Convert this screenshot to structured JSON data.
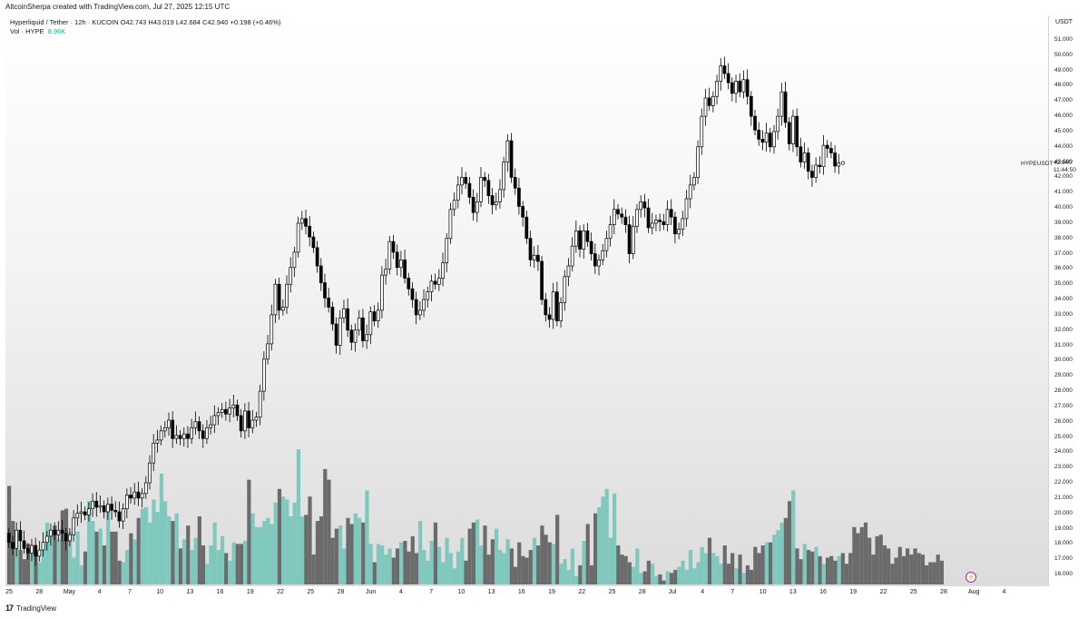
{
  "header": {
    "attribution": "AltcoinSherpa created with TradingView.com, Jul 27, 2025 12:15 UTC"
  },
  "legend": {
    "line1": "Hyperliquid / Tether · 12h · KUCOIN  O42.743  H43.019  L42.684  C42.940  +0.198 (+0.46%)",
    "vol_label": "Vol · HYPE",
    "vol_value": "8.96K"
  },
  "price_axis": {
    "unit": "USDT",
    "ticks": [
      "51.000",
      "50.000",
      "49.000",
      "48.000",
      "47.000",
      "46.000",
      "45.000",
      "44.000",
      "43.000",
      "42.000",
      "41.000",
      "40.000",
      "39.000",
      "38.000",
      "37.000",
      "36.000",
      "35.000",
      "34.000",
      "33.000",
      "32.000",
      "31.000",
      "30.000",
      "29.000",
      "28.000",
      "27.000",
      "26.000",
      "25.000",
      "24.000",
      "23.000",
      "22.000",
      "21.000",
      "20.000",
      "19.000",
      "18.000",
      "17.000",
      "16.000"
    ],
    "last_price": "42.940",
    "countdown": "11:44:50",
    "symbol": "HYPEUSDT"
  },
  "time_axis": {
    "ticks": [
      "25",
      "28",
      "May",
      "4",
      "7",
      "10",
      "13",
      "16",
      "19",
      "22",
      "25",
      "28",
      "Jun",
      "4",
      "7",
      "10",
      "13",
      "16",
      "19",
      "22",
      "25",
      "28",
      "Jul",
      "4",
      "7",
      "10",
      "13",
      "16",
      "19",
      "22",
      "25",
      "28",
      "Aug",
      "4"
    ]
  },
  "footer": {
    "brand": "TradingView",
    "logo_glyph": "17"
  },
  "colors": {
    "up": "#ffffff",
    "down": "#000000",
    "vol_up": "#7fc8bd",
    "vol_down": "#6b6b6b"
  },
  "chart_data": {
    "type": "candlestick",
    "title": "Hyperliquid / Tether · 12h · KUCOIN",
    "ylabel": "USDT",
    "ylim": [
      15.5,
      51.5
    ],
    "x_range": [
      "2025-04-24",
      "2025-08-05"
    ],
    "interval": "12h",
    "series": [
      {
        "name": "Price",
        "candles": [
          [
            18.7,
            18.1
          ],
          [
            18.1,
            17.7
          ],
          [
            17.7,
            18.9
          ],
          [
            18.9,
            18.2
          ],
          [
            18.2,
            17.7
          ],
          [
            17.7,
            17.4
          ],
          [
            17.4,
            17.9
          ],
          [
            17.9,
            17.2
          ],
          [
            17.2,
            17.6
          ],
          [
            17.6,
            18.1
          ],
          [
            18.1,
            18.5
          ],
          [
            18.5,
            18.9
          ],
          [
            18.9,
            18.6
          ],
          [
            18.6,
            18.9
          ],
          [
            18.9,
            18.7
          ],
          [
            18.7,
            18.2
          ],
          [
            18.2,
            18.6
          ],
          [
            18.6,
            19.7
          ],
          [
            19.7,
            20.0
          ],
          [
            20.0,
            20.1
          ],
          [
            20.1,
            19.9
          ],
          [
            19.9,
            20.3
          ],
          [
            20.3,
            20.8
          ],
          [
            20.8,
            20.4
          ],
          [
            20.4,
            20.5
          ],
          [
            20.5,
            20.1
          ],
          [
            20.1,
            20.6
          ],
          [
            20.6,
            20.2
          ],
          [
            20.2,
            20.1
          ],
          [
            20.1,
            19.5
          ],
          [
            19.5,
            20.3
          ],
          [
            20.3,
            21.2
          ],
          [
            21.2,
            21.0
          ],
          [
            21.0,
            21.4
          ],
          [
            21.4,
            21.0
          ],
          [
            21.0,
            21.3
          ],
          [
            21.3,
            22.0
          ],
          [
            22.0,
            23.3
          ],
          [
            23.3,
            24.6
          ],
          [
            24.6,
            24.8
          ],
          [
            24.8,
            25.4
          ],
          [
            25.4,
            25.6
          ],
          [
            25.6,
            26.1
          ],
          [
            26.1,
            24.9
          ],
          [
            24.9,
            25.1
          ],
          [
            25.1,
            24.9
          ],
          [
            24.9,
            25.2
          ],
          [
            25.2,
            24.9
          ],
          [
            24.9,
            25.6
          ],
          [
            25.6,
            26.0
          ],
          [
            26.0,
            25.4
          ],
          [
            25.4,
            24.9
          ],
          [
            24.9,
            25.6
          ],
          [
            25.6,
            25.8
          ],
          [
            25.8,
            26.4
          ],
          [
            26.4,
            26.6
          ],
          [
            26.6,
            26.8
          ],
          [
            26.8,
            26.5
          ],
          [
            26.5,
            26.9
          ],
          [
            26.9,
            27.1
          ],
          [
            27.1,
            26.4
          ],
          [
            26.4,
            25.4
          ],
          [
            25.4,
            26.7
          ],
          [
            26.7,
            25.6
          ],
          [
            25.6,
            26.1
          ],
          [
            26.1,
            26.3
          ],
          [
            26.3,
            28.0
          ],
          [
            28.0,
            30.1
          ],
          [
            30.1,
            31.1
          ],
          [
            31.1,
            33.0
          ],
          [
            33.0,
            35.0
          ],
          [
            35.0,
            33.3
          ],
          [
            33.3,
            33.5
          ],
          [
            33.5,
            35.0
          ],
          [
            35.0,
            36.1
          ],
          [
            36.1,
            37.1
          ],
          [
            37.1,
            39.0
          ],
          [
            39.0,
            39.3
          ],
          [
            39.3,
            38.8
          ],
          [
            38.8,
            38.1
          ],
          [
            38.1,
            37.4
          ],
          [
            37.4,
            36.2
          ],
          [
            36.2,
            35.1
          ],
          [
            35.1,
            34.1
          ],
          [
            34.1,
            33.5
          ],
          [
            33.5,
            32.4
          ],
          [
            32.4,
            31.0
          ],
          [
            31.0,
            32.8
          ],
          [
            32.8,
            33.4
          ],
          [
            33.4,
            32.0
          ],
          [
            32.0,
            31.2
          ],
          [
            31.2,
            32.0
          ],
          [
            32.0,
            32.8
          ],
          [
            32.8,
            31.3
          ],
          [
            31.3,
            31.7
          ],
          [
            31.7,
            33.2
          ],
          [
            33.2,
            32.6
          ],
          [
            32.6,
            33.3
          ],
          [
            33.3,
            35.6
          ],
          [
            35.6,
            36.0
          ],
          [
            36.0,
            37.8
          ],
          [
            37.8,
            37.1
          ],
          [
            37.1,
            36.1
          ],
          [
            36.1,
            36.6
          ],
          [
            36.6,
            35.4
          ],
          [
            35.4,
            34.7
          ],
          [
            34.7,
            34.0
          ],
          [
            34.0,
            33.0
          ],
          [
            33.0,
            33.3
          ],
          [
            33.3,
            34.0
          ],
          [
            34.0,
            34.5
          ],
          [
            34.5,
            35.2
          ],
          [
            35.2,
            35.0
          ],
          [
            35.0,
            35.4
          ],
          [
            35.4,
            36.4
          ],
          [
            36.4,
            38.0
          ],
          [
            38.0,
            39.9
          ],
          [
            39.9,
            40.5
          ],
          [
            40.5,
            41.5
          ],
          [
            41.5,
            42.0
          ],
          [
            42.0,
            41.6
          ],
          [
            41.6,
            40.7
          ],
          [
            40.7,
            39.7
          ],
          [
            39.7,
            40.4
          ],
          [
            40.4,
            42.0
          ],
          [
            42.0,
            41.8
          ],
          [
            41.8,
            40.8
          ],
          [
            40.8,
            40.2
          ],
          [
            40.2,
            40.4
          ],
          [
            40.4,
            41.2
          ],
          [
            41.2,
            43.0
          ],
          [
            43.0,
            44.4
          ],
          [
            44.4,
            42.0
          ],
          [
            42.0,
            41.3
          ],
          [
            41.3,
            40.1
          ],
          [
            40.1,
            39.4
          ],
          [
            39.4,
            38.0
          ],
          [
            38.0,
            36.6
          ],
          [
            36.6,
            36.9
          ],
          [
            36.9,
            36.5
          ],
          [
            36.5,
            34.0
          ],
          [
            34.0,
            33.0
          ],
          [
            33.0,
            32.7
          ],
          [
            32.7,
            34.5
          ],
          [
            34.5,
            32.6
          ],
          [
            32.6,
            33.8
          ],
          [
            33.8,
            35.5
          ],
          [
            35.5,
            36.2
          ],
          [
            36.2,
            37.5
          ],
          [
            37.5,
            38.5
          ],
          [
            38.5,
            37.3
          ],
          [
            37.3,
            38.5
          ],
          [
            38.5,
            37.8
          ],
          [
            37.8,
            37.0
          ],
          [
            37.0,
            36.2
          ],
          [
            36.2,
            36.6
          ],
          [
            36.6,
            37.2
          ],
          [
            37.2,
            38.0
          ],
          [
            38.0,
            38.9
          ],
          [
            38.9,
            39.9
          ],
          [
            39.9,
            39.6
          ],
          [
            39.6,
            39.4
          ],
          [
            39.4,
            38.9
          ],
          [
            38.9,
            37.0
          ],
          [
            37.0,
            38.8
          ],
          [
            38.8,
            39.9
          ],
          [
            39.9,
            40.4
          ],
          [
            40.4,
            40.0
          ],
          [
            40.0,
            38.7
          ],
          [
            38.7,
            39.0
          ],
          [
            39.0,
            39.2
          ],
          [
            39.2,
            39.1
          ],
          [
            39.1,
            38.9
          ],
          [
            38.9,
            39.9
          ],
          [
            39.9,
            39.4
          ],
          [
            39.4,
            38.3
          ],
          [
            38.3,
            38.6
          ],
          [
            38.6,
            39.3
          ],
          [
            39.3,
            40.6
          ],
          [
            40.6,
            41.5
          ],
          [
            41.5,
            42.0
          ],
          [
            42.0,
            44.0
          ],
          [
            44.0,
            46.0
          ],
          [
            46.0,
            47.2
          ],
          [
            47.2,
            46.7
          ],
          [
            46.7,
            47.3
          ],
          [
            47.3,
            48.3
          ],
          [
            48.3,
            49.3
          ],
          [
            49.3,
            48.8
          ],
          [
            48.8,
            48.2
          ],
          [
            48.2,
            47.5
          ],
          [
            47.5,
            48.3
          ],
          [
            48.3,
            47.6
          ],
          [
            47.6,
            48.4
          ],
          [
            48.4,
            47.3
          ],
          [
            47.3,
            46.0
          ],
          [
            46.0,
            45.1
          ],
          [
            45.1,
            44.5
          ],
          [
            44.5,
            44.3
          ],
          [
            44.3,
            44.9
          ],
          [
            44.9,
            44.0
          ],
          [
            44.0,
            45.0
          ],
          [
            45.0,
            46.0
          ],
          [
            46.0,
            47.6
          ],
          [
            47.6,
            45.6
          ],
          [
            45.6,
            44.2
          ],
          [
            44.2,
            46.0
          ],
          [
            46.0,
            44.0
          ],
          [
            44.0,
            43.0
          ],
          [
            43.0,
            43.6
          ],
          [
            43.6,
            42.4
          ],
          [
            42.4,
            42.0
          ],
          [
            42.0,
            42.8
          ],
          [
            42.8,
            42.7
          ],
          [
            42.7,
            44.1
          ],
          [
            44.1,
            43.9
          ],
          [
            43.9,
            43.6
          ],
          [
            43.6,
            42.743
          ],
          [
            42.743,
            42.94
          ]
        ]
      },
      {
        "name": "Vol · HYPE",
        "values": [
          21.8,
          19.5,
          18.7,
          17.6,
          17.0,
          18.0,
          17.6,
          17.5,
          16.8,
          17.9,
          19.4,
          18.7,
          19.2,
          18.3,
          20.2,
          20.3,
          18.8,
          17.1,
          18.8,
          16.6,
          17.5,
          20.8,
          19.5,
          18.8,
          19.0,
          17.9,
          20.2,
          18.8,
          18.8,
          16.9,
          16.8,
          17.6,
          18.7,
          18.3,
          19.7,
          20.3,
          20.4,
          19.4,
          20.9,
          20.1,
          22.6,
          20.8,
          19.8,
          19.5,
          20.0,
          17.7,
          18.3,
          19.2,
          17.6,
          18.4,
          19.8,
          17.9,
          16.7,
          17.9,
          19.4,
          17.6,
          18.5,
          17.4,
          16.9,
          18.1,
          18.0,
          18.0,
          18.2,
          22.2,
          20.0,
          19.1,
          19.1,
          19.5,
          19.7,
          19.3,
          20.7,
          21.6,
          21.1,
          20.9,
          19.8,
          20.7,
          24.2,
          19.8,
          19.9,
          21.1,
          17.3,
          19.5,
          19.8,
          22.9,
          22.2,
          18.4,
          19.0,
          19.2,
          17.7,
          19.7,
          19.3,
          20.0,
          19.7,
          19.4,
          21.5,
          18.0,
          16.8,
          18.0,
          17.9,
          17.3,
          17.7,
          17.1,
          17.7,
          18.1,
          18.2,
          17.5,
          18.5,
          17.4,
          19.5,
          17.6,
          16.9,
          18.2,
          19.4,
          17.8,
          16.8,
          18.4,
          17.4,
          16.4,
          17.5,
          18.4,
          16.9,
          19.0,
          19.4,
          19.6,
          17.9,
          19.2,
          17.3,
          18.3,
          19.0,
          17.6,
          17.4,
          18.3,
          17.7,
          16.5,
          18.1,
          17.2,
          17.1,
          17.6,
          18.4,
          17.9,
          19.2,
          18.6,
          18.1,
          18.0,
          19.9,
          16.7,
          17.0,
          16.3,
          17.7,
          15.9,
          16.6,
          18.2,
          19.3,
          16.6,
          20.0,
          20.4,
          21.1,
          21.6,
          18.4,
          21.3,
          17.9,
          17.3,
          17.2,
          16.8,
          16.5,
          17.7,
          16.1,
          16.2,
          16.9,
          16.7,
          15.9,
          16.0,
          15.6,
          16.2,
          16.1,
          16.3,
          16.5,
          16.9,
          16.3,
          17.6,
          16.4,
          16.8,
          17.8,
          17.4,
          18.4,
          17.4,
          17.2,
          16.7,
          17.9,
          16.7,
          17.4,
          16.4,
          17.3,
          16.1,
          16.6,
          16.3,
          17.8,
          17.4,
          17.9,
          18.1,
          18.1,
          18.6,
          18.9,
          19.4,
          19.7,
          20.8,
          21.5,
          17.7,
          17.0,
          18.0,
          17.6,
          17.5,
          17.8,
          17.2,
          16.7,
          17.1,
          17.2,
          16.9,
          17.2,
          17.4,
          16.7,
          17.4,
          19.1,
          18.7,
          19.1,
          19.4,
          18.4,
          17.3,
          18.5,
          18.6,
          17.9,
          17.7,
          16.7,
          17.1,
          17.8,
          17.2,
          17.7,
          17.3,
          17.7,
          17.4,
          17.3,
          16.6,
          16.8,
          16.8,
          17.3,
          16.9
        ]
      }
    ]
  }
}
